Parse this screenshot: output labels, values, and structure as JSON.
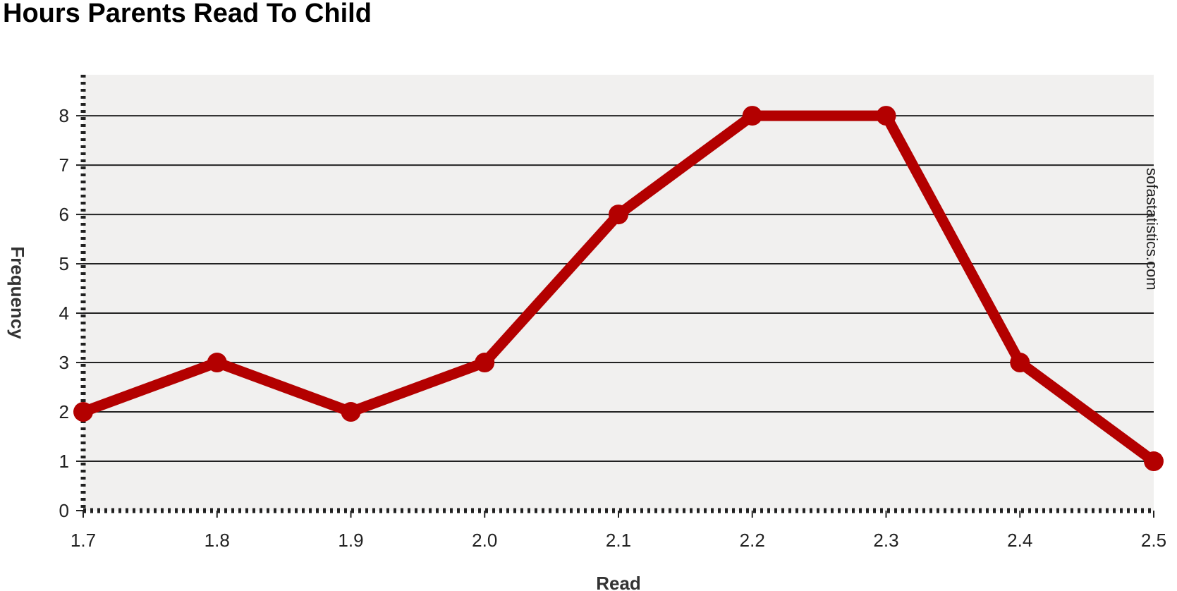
{
  "chart_data": {
    "type": "line",
    "title": "Hours Parents Read To Child",
    "xlabel": "Read",
    "ylabel": "Frequency",
    "x": [
      1.7,
      1.8,
      1.9,
      2.0,
      2.1,
      2.2,
      2.3,
      2.4,
      2.5
    ],
    "x_tick_labels": [
      "1.7",
      "1.8",
      "1.9",
      "2.0",
      "2.1",
      "2.2",
      "2.3",
      "2.4",
      "2.5"
    ],
    "y_ticks": [
      0,
      1,
      2,
      3,
      4,
      5,
      6,
      7,
      8
    ],
    "series": [
      {
        "values": [
          2,
          3,
          2,
          3,
          6,
          8,
          8,
          3,
          1
        ]
      }
    ],
    "xlim": [
      1.7,
      2.5
    ],
    "ylim": [
      0,
      8.8
    ],
    "grid": true,
    "colors": {
      "line": "#b30000",
      "plot_background": "#f1f0ef",
      "grid": "#222222"
    }
  },
  "watermark": "sofastatistics.com"
}
